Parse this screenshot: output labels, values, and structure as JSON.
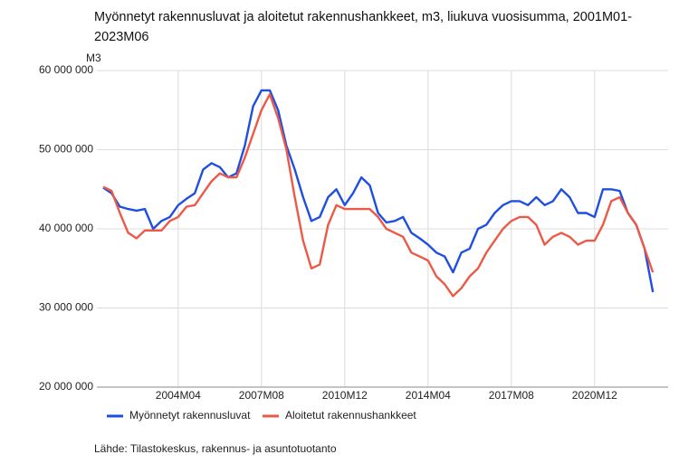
{
  "chart_data": {
    "type": "line",
    "title": "Myönnetyt rakennusluvat ja aloitetut rakennushankkeet, m3, liukuva vuosisumma, 2001M01-2023M06",
    "y_label": "M3",
    "source": "Lähde: Tilastokeskus, rakennus- ja asuntotuotanto",
    "categories": [
      null,
      null,
      null,
      null,
      null,
      null,
      null,
      null,
      null,
      "2004M04",
      null,
      null,
      null,
      null,
      null,
      null,
      null,
      null,
      null,
      "2007M08",
      null,
      null,
      null,
      null,
      null,
      null,
      null,
      null,
      null,
      "2010M12",
      null,
      null,
      null,
      null,
      null,
      null,
      null,
      null,
      null,
      "2014M04",
      null,
      null,
      null,
      null,
      null,
      null,
      null,
      null,
      null,
      "2017M08",
      null,
      null,
      null,
      null,
      null,
      null,
      null,
      null,
      null,
      "2020M12",
      null,
      null,
      null,
      null,
      null,
      null,
      null
    ],
    "series": [
      {
        "name": "Myönnetyt rakennusluvat",
        "color": "#1f4fe0",
        "values": [
          45200000,
          44500000,
          42800000,
          42500000,
          42300000,
          42500000,
          40000000,
          41000000,
          41500000,
          43000000,
          43800000,
          44500000,
          47500000,
          48300000,
          47800000,
          46500000,
          47000000,
          50500000,
          55500000,
          57500000,
          57500000,
          55000000,
          50500000,
          47500000,
          44000000,
          41000000,
          41500000,
          44000000,
          45000000,
          43000000,
          44500000,
          46500000,
          45500000,
          42000000,
          40800000,
          41000000,
          41500000,
          39500000,
          38800000,
          38000000,
          37000000,
          36500000,
          34500000,
          37000000,
          37500000,
          40000000,
          40500000,
          42000000,
          43000000,
          43500000,
          43500000,
          43000000,
          44000000,
          43000000,
          43500000,
          45000000,
          44000000,
          42000000,
          42000000,
          41500000,
          45000000,
          45000000,
          44800000,
          42000000,
          40500000,
          37500000,
          32000000
        ]
      },
      {
        "name": "Aloitetut rakennushankkeet",
        "color": "#ec5a47",
        "values": [
          45300000,
          44800000,
          42000000,
          39500000,
          38800000,
          39800000,
          39800000,
          39800000,
          41000000,
          41500000,
          42800000,
          43000000,
          44500000,
          46000000,
          47000000,
          46500000,
          46500000,
          49000000,
          52000000,
          55000000,
          57000000,
          54000000,
          50000000,
          44000000,
          38500000,
          35000000,
          35500000,
          40500000,
          43000000,
          42500000,
          42500000,
          42500000,
          42500000,
          41500000,
          40000000,
          39500000,
          39000000,
          37000000,
          36500000,
          36000000,
          34000000,
          33000000,
          31500000,
          32500000,
          34000000,
          35000000,
          37000000,
          38500000,
          40000000,
          41000000,
          41500000,
          41500000,
          40500000,
          38000000,
          39000000,
          39500000,
          39000000,
          38000000,
          38500000,
          38500000,
          40500000,
          43500000,
          44000000,
          42000000,
          40500000,
          37500000,
          34500000
        ]
      }
    ],
    "ylim": [
      20000000,
      60000000
    ],
    "yticks": [
      {
        "value": 20000000,
        "label": "20 000 000"
      },
      {
        "value": 30000000,
        "label": "30 000 000"
      },
      {
        "value": 40000000,
        "label": "40 000 000"
      },
      {
        "value": 50000000,
        "label": "50 000 000"
      },
      {
        "value": 60000000,
        "label": "60 000 000"
      }
    ],
    "grid": true
  }
}
